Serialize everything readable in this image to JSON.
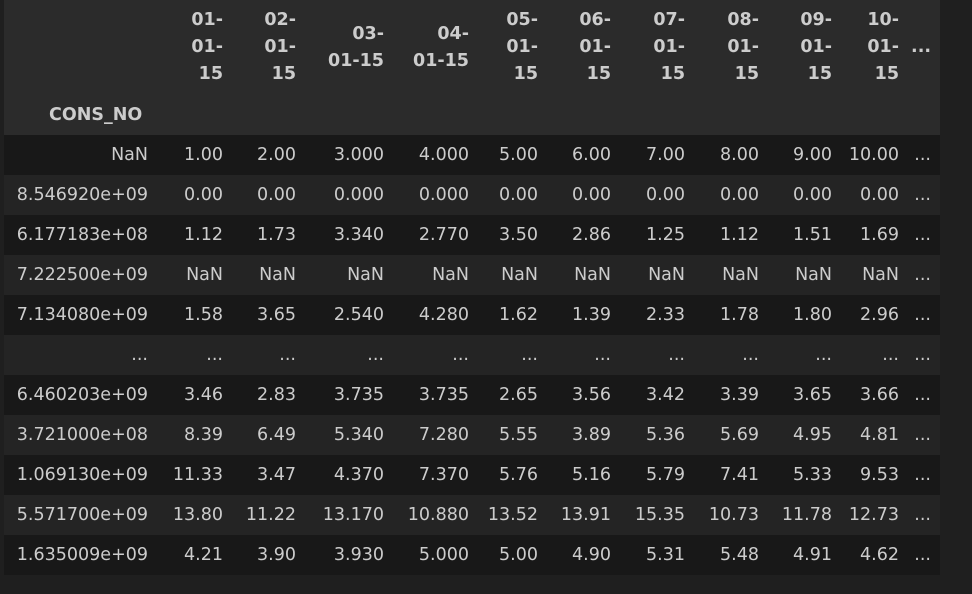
{
  "index_name": "CONS_NO",
  "columns": [
    [
      "01-",
      "01-",
      "15"
    ],
    [
      "02-",
      "01-",
      "15"
    ],
    [
      "03-",
      "01-15"
    ],
    [
      "04-",
      "01-15"
    ],
    [
      "05-",
      "01-",
      "15"
    ],
    [
      "06-",
      "01-",
      "15"
    ],
    [
      "07-",
      "01-",
      "15"
    ],
    [
      "08-",
      "01-",
      "15"
    ],
    [
      "09-",
      "01-",
      "15"
    ],
    [
      "10-",
      "01-",
      "15"
    ]
  ],
  "col_ellipsis": "...",
  "rows": [
    {
      "index": "NaN",
      "values": [
        "1.00",
        "2.00",
        "3.000",
        "4.000",
        "5.00",
        "6.00",
        "7.00",
        "8.00",
        "9.00",
        "10.00"
      ],
      "tail": "..."
    },
    {
      "index": "8.546920e+09",
      "values": [
        "0.00",
        "0.00",
        "0.000",
        "0.000",
        "0.00",
        "0.00",
        "0.00",
        "0.00",
        "0.00",
        "0.00"
      ],
      "tail": "..."
    },
    {
      "index": "6.177183e+08",
      "values": [
        "1.12",
        "1.73",
        "3.340",
        "2.770",
        "3.50",
        "2.86",
        "1.25",
        "1.12",
        "1.51",
        "1.69"
      ],
      "tail": "..."
    },
    {
      "index": "7.222500e+09",
      "values": [
        "NaN",
        "NaN",
        "NaN",
        "NaN",
        "NaN",
        "NaN",
        "NaN",
        "NaN",
        "NaN",
        "NaN"
      ],
      "tail": "..."
    },
    {
      "index": "7.134080e+09",
      "values": [
        "1.58",
        "3.65",
        "2.540",
        "4.280",
        "1.62",
        "1.39",
        "2.33",
        "1.78",
        "1.80",
        "2.96"
      ],
      "tail": "..."
    },
    {
      "index": "...",
      "values": [
        "...",
        "...",
        "...",
        "...",
        "...",
        "...",
        "...",
        "...",
        "...",
        "..."
      ],
      "tail": "..."
    },
    {
      "index": "6.460203e+09",
      "values": [
        "3.46",
        "2.83",
        "3.735",
        "3.735",
        "2.65",
        "3.56",
        "3.42",
        "3.39",
        "3.65",
        "3.66"
      ],
      "tail": "..."
    },
    {
      "index": "3.721000e+08",
      "values": [
        "8.39",
        "6.49",
        "5.340",
        "7.280",
        "5.55",
        "3.89",
        "5.36",
        "5.69",
        "4.95",
        "4.81"
      ],
      "tail": "..."
    },
    {
      "index": "1.069130e+09",
      "values": [
        "11.33",
        "3.47",
        "4.370",
        "7.370",
        "5.76",
        "5.16",
        "5.79",
        "7.41",
        "5.33",
        "9.53"
      ],
      "tail": "..."
    },
    {
      "index": "5.571700e+09",
      "values": [
        "13.80",
        "11.22",
        "13.170",
        "10.880",
        "13.52",
        "13.91",
        "15.35",
        "10.73",
        "11.78",
        "12.73"
      ],
      "tail": "..."
    },
    {
      "index": "1.635009e+09",
      "values": [
        "4.21",
        "3.90",
        "3.930",
        "5.000",
        "5.00",
        "4.90",
        "5.31",
        "5.48",
        "4.91",
        "4.62"
      ],
      "tail": "..."
    }
  ]
}
